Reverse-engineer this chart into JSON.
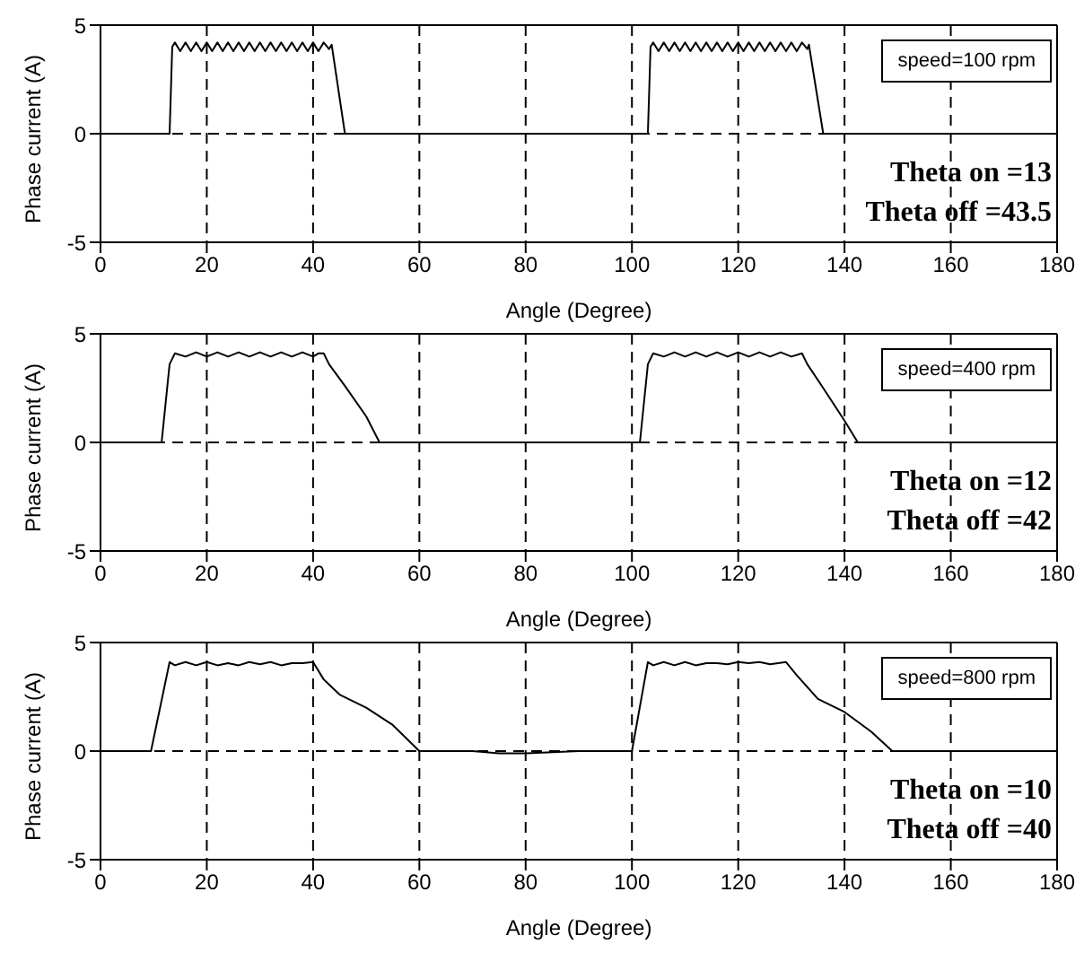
{
  "chart_data": [
    {
      "type": "line",
      "xlabel": "Angle (Degree)",
      "ylabel": "Phase current (A)",
      "xlim": [
        0,
        180
      ],
      "xticks": [
        0,
        20,
        40,
        60,
        80,
        100,
        120,
        140,
        160,
        180
      ],
      "ylim": [
        -5,
        5
      ],
      "yticks": [
        -5,
        0,
        5
      ],
      "grid": true,
      "line_style": "solid",
      "marker": "none",
      "annotations": [
        "speed=100 rpm",
        "Theta on =13",
        "Theta off =43.5"
      ],
      "series": [
        {
          "color": "#000000",
          "x": [
            0,
            13,
            13.5,
            14,
            15,
            16,
            17,
            18,
            19,
            20,
            21,
            22,
            23,
            24,
            25,
            26,
            27,
            28,
            29,
            30,
            31,
            32,
            33,
            34,
            35,
            36,
            37,
            38,
            39,
            40,
            41,
            42,
            43,
            43.5,
            46,
            103,
            103.5,
            104,
            105,
            106,
            107,
            108,
            109,
            110,
            111,
            112,
            113,
            114,
            115,
            116,
            117,
            118,
            119,
            120,
            121,
            122,
            123,
            124,
            125,
            126,
            127,
            128,
            129,
            130,
            131,
            132,
            133,
            133.3,
            136,
            180
          ],
          "values": [
            0,
            0,
            4,
            4.2,
            3.8,
            4.2,
            3.8,
            4.2,
            3.8,
            4.2,
            3.8,
            4.2,
            3.8,
            4.2,
            3.8,
            4.2,
            3.8,
            4.2,
            3.8,
            4.2,
            3.8,
            4.2,
            3.8,
            4.2,
            3.8,
            4.2,
            3.8,
            4.2,
            3.8,
            4.2,
            3.8,
            4.2,
            3.9,
            4.1,
            0,
            0,
            4,
            4.2,
            3.8,
            4.2,
            3.8,
            4.2,
            3.8,
            4.2,
            3.8,
            4.2,
            3.8,
            4.2,
            3.8,
            4.2,
            3.8,
            4.2,
            3.8,
            4.2,
            3.8,
            4.2,
            3.8,
            4.2,
            3.8,
            4.2,
            3.8,
            4.2,
            3.8,
            4.2,
            3.8,
            4.2,
            3.9,
            4.1,
            0,
            0
          ]
        }
      ]
    },
    {
      "type": "line",
      "xlabel": "Angle (Degree)",
      "ylabel": "Phase current (A)",
      "xlim": [
        0,
        180
      ],
      "xticks": [
        0,
        20,
        40,
        60,
        80,
        100,
        120,
        140,
        160,
        180
      ],
      "ylim": [
        -5,
        5
      ],
      "yticks": [
        -5,
        0,
        5
      ],
      "grid": true,
      "line_style": "solid",
      "marker": "none",
      "annotations": [
        "speed=400 rpm",
        "Theta on =12",
        "Theta off =42"
      ],
      "series": [
        {
          "color": "#000000",
          "x": [
            0,
            11.5,
            13,
            14,
            16,
            18,
            20,
            22,
            24,
            26,
            28,
            30,
            32,
            34,
            36,
            38,
            40,
            41,
            42,
            43,
            46,
            50,
            52.5,
            101.5,
            103,
            104,
            106,
            108,
            110,
            112,
            114,
            116,
            118,
            120,
            122,
            124,
            126,
            128,
            130,
            132,
            133,
            136,
            140,
            142.5,
            180
          ],
          "values": [
            0,
            0,
            3.6,
            4.1,
            3.95,
            4.15,
            3.95,
            4.15,
            3.95,
            4.15,
            3.95,
            4.15,
            3.95,
            4.15,
            3.95,
            4.15,
            3.95,
            4.1,
            4.1,
            3.6,
            2.6,
            1.2,
            0,
            0,
            3.6,
            4.1,
            3.95,
            4.15,
            3.95,
            4.15,
            3.95,
            4.15,
            3.95,
            4.15,
            3.95,
            4.15,
            3.95,
            4.15,
            3.95,
            4.1,
            3.6,
            2.5,
            1.0,
            0,
            0
          ]
        }
      ]
    },
    {
      "type": "line",
      "xlabel": "Angle (Degree)",
      "ylabel": "Phase current (A)",
      "xlim": [
        0,
        180
      ],
      "xticks": [
        0,
        20,
        40,
        60,
        80,
        100,
        120,
        140,
        160,
        180
      ],
      "ylim": [
        -5,
        5
      ],
      "yticks": [
        -5,
        0,
        5
      ],
      "grid": true,
      "line_style": "solid",
      "marker": "none",
      "annotations": [
        "speed=800 rpm",
        "Theta on =10",
        "Theta off =40"
      ],
      "series": [
        {
          "color": "#000000",
          "x": [
            0,
            9.5,
            13,
            14,
            16,
            18,
            20,
            22,
            24,
            26,
            28,
            30,
            32,
            34,
            36,
            38,
            40,
            42,
            45,
            50,
            55,
            60,
            70,
            75,
            80,
            85,
            90,
            100,
            103,
            104,
            106,
            108,
            110,
            112,
            114,
            116,
            118,
            120,
            122,
            124,
            126,
            129,
            131,
            135,
            140,
            145,
            149,
            180
          ],
          "values": [
            0,
            0,
            4.1,
            3.95,
            4.1,
            3.95,
            4.1,
            3.95,
            4.05,
            3.95,
            4.1,
            4.0,
            4.1,
            3.95,
            4.05,
            4.05,
            4.1,
            3.3,
            2.6,
            2.0,
            1.2,
            0,
            0,
            -0.1,
            -0.1,
            -0.05,
            0,
            0,
            4.1,
            3.95,
            4.1,
            3.95,
            4.1,
            3.95,
            4.05,
            4.05,
            4.0,
            4.1,
            4.05,
            4.1,
            4.0,
            4.1,
            3.5,
            2.4,
            1.8,
            0.9,
            0,
            0
          ]
        }
      ]
    }
  ]
}
